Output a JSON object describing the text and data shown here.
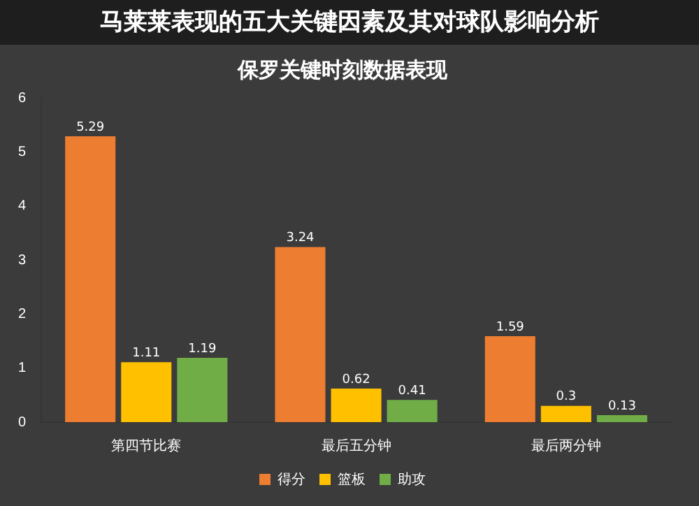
{
  "chart_data": {
    "type": "bar",
    "title": "保罗关键时刻数据表现",
    "annotations": [
      "马莱莱表现的五大关键因素及其对球队影响分析"
    ],
    "categories": [
      "第四节比赛",
      "最后五分钟",
      "最后两分钟"
    ],
    "series": [
      {
        "name": "得分",
        "color": "#ed7d31",
        "values": [
          5.29,
          3.24,
          1.59
        ]
      },
      {
        "name": "篮板",
        "color": "#ffc000",
        "values": [
          1.11,
          0.62,
          0.3
        ]
      },
      {
        "name": "助攻",
        "color": "#70ad47",
        "values": [
          1.19,
          0.41,
          0.13
        ]
      }
    ],
    "ylim": [
      0,
      6
    ],
    "yticks": [
      0,
      1,
      2,
      3,
      4,
      5,
      6
    ],
    "grid": false,
    "legend": "bottom",
    "data_labels": true
  }
}
